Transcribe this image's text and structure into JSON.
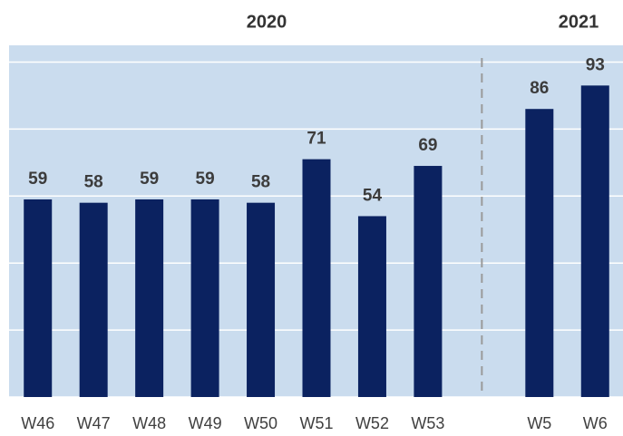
{
  "chart_data": {
    "type": "bar",
    "annotations": [
      "2020",
      "2021"
    ],
    "categories": [
      "W46",
      "W47",
      "W48",
      "W49",
      "W50",
      "W51",
      "W52",
      "W53",
      null,
      "W5",
      "W6"
    ],
    "values": [
      59,
      58,
      59,
      59,
      58,
      71,
      54,
      69,
      null,
      86,
      93
    ],
    "color": "#0b2260",
    "ylim": [
      0,
      105
    ],
    "yticks": [
      0,
      20,
      40,
      60,
      80,
      100
    ],
    "grid": true
  }
}
